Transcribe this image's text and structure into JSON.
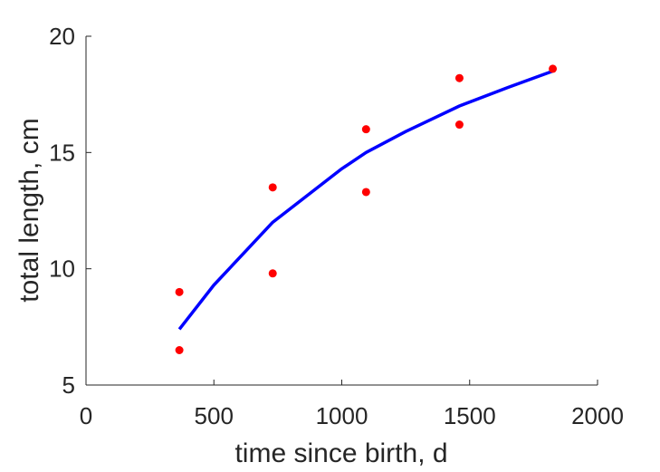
{
  "chart_data": {
    "type": "scatter",
    "xlabel": "time since birth, d",
    "ylabel": "total length, cm",
    "xlim": [
      0,
      2000
    ],
    "ylim": [
      5,
      20
    ],
    "xticks": [
      0,
      500,
      1000,
      1500,
      2000
    ],
    "yticks": [
      5,
      10,
      15,
      20
    ],
    "xtick_labels": [
      "0",
      "500",
      "1000",
      "1500",
      "2000"
    ],
    "ytick_labels": [
      "5",
      "10",
      "15",
      "20"
    ],
    "grid": false,
    "series": [
      {
        "kind": "scatter",
        "color": "#ff0000",
        "x": [
          365,
          365,
          730,
          730,
          1095,
          1095,
          1460,
          1460,
          1825
        ],
        "y": [
          9.0,
          6.5,
          13.5,
          9.8,
          16.0,
          13.3,
          18.2,
          16.2,
          18.6
        ]
      },
      {
        "kind": "line",
        "color": "#0000ff",
        "x": [
          365,
          500,
          730,
          1000,
          1095,
          1250,
          1460,
          1650,
          1825
        ],
        "y": [
          7.4,
          9.3,
          12.0,
          14.3,
          15.0,
          15.9,
          17.0,
          17.8,
          18.5
        ]
      }
    ]
  }
}
